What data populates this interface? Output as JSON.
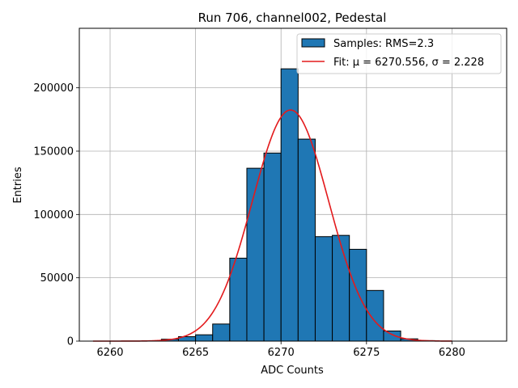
{
  "chart_data": {
    "type": "bar",
    "title": "Run 706, channel002, Pedestal",
    "xlabel": "ADC Counts",
    "ylabel": "Entries",
    "xlim": [
      6258.2,
      6283.2
    ],
    "ylim": [
      0,
      247000
    ],
    "xticks": [
      6260,
      6265,
      6270,
      6275,
      6280
    ],
    "yticks": [
      0,
      50000,
      100000,
      150000,
      200000
    ],
    "grid": true,
    "legend_position": "top-right",
    "histogram": {
      "name": "Samples: RMS=2.3",
      "color": "#1f77b4",
      "bin_width": 1,
      "bins": [
        {
          "left": 6263,
          "count": 1500
        },
        {
          "left": 6264,
          "count": 3500
        },
        {
          "left": 6265,
          "count": 5000
        },
        {
          "left": 6266,
          "count": 13500
        },
        {
          "left": 6267,
          "count": 65500
        },
        {
          "left": 6268,
          "count": 136500
        },
        {
          "left": 6269,
          "count": 148500
        },
        {
          "left": 6270,
          "count": 215000
        },
        {
          "left": 6271,
          "count": 159500
        },
        {
          "left": 6272,
          "count": 82500
        },
        {
          "left": 6273,
          "count": 83500
        },
        {
          "left": 6274,
          "count": 72500
        },
        {
          "left": 6275,
          "count": 40000
        },
        {
          "left": 6276,
          "count": 8000
        },
        {
          "left": 6277,
          "count": 1800
        },
        {
          "left": 6278,
          "count": 400
        }
      ]
    },
    "fit": {
      "name": "Fit: μ = 6270.556, σ = 2.228",
      "color": "#e31a1c",
      "mu": 6270.556,
      "sigma": 2.228,
      "amplitude": 182500,
      "x_range": [
        6259,
        6280
      ]
    }
  }
}
